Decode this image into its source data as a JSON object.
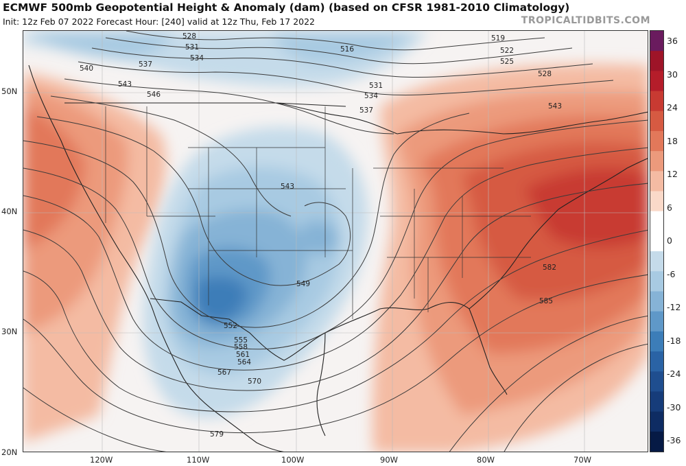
{
  "header": {
    "title": "ECMWF 500mb Geopotential Height & Anomaly (dam) (based on CFSR 1981-2010 Climatology)",
    "subtitle": "Init: 12z Feb 07 2022   Forecast Hour: [240]   valid at 12z Thu, Feb 17 2022",
    "brand": "TROPICALTIDBITS.COM"
  },
  "axes": {
    "lat_labels": [
      "50N",
      "40N",
      "30N",
      "20N"
    ],
    "lon_labels": [
      "120W",
      "110W",
      "100W",
      "90W",
      "80W",
      "70W"
    ]
  },
  "colorbar": {
    "tick_labels": [
      "36",
      "30",
      "24",
      "18",
      "12",
      "6",
      "0",
      "-6",
      "-12",
      "-18",
      "-24",
      "-30",
      "-36"
    ],
    "colors": [
      "#6a1b5e",
      "#9e1428",
      "#b51d2a",
      "#c83a32",
      "#d65a42",
      "#e2785a",
      "#ec9a7c",
      "#f4bba3",
      "#fad9c9",
      "#ffffff",
      "#ffffff",
      "#c5dbea",
      "#a8cae2",
      "#86b3d6",
      "#5f98c8",
      "#3c7db8",
      "#2a63a5",
      "#1f4e8f",
      "#163c7a",
      "#0e2c63",
      "#061a45"
    ]
  },
  "contour_labels": {
    "north": [
      "528",
      "531",
      "534",
      "537",
      "540",
      "543",
      "546",
      "516",
      "519",
      "522",
      "525",
      "528",
      "531",
      "534",
      "537",
      "543"
    ],
    "west": [
      "543",
      "549",
      "552",
      "555",
      "558",
      "561",
      "564",
      "567",
      "570",
      "579"
    ],
    "east": [
      "582",
      "585"
    ]
  },
  "colors": {
    "cold_anomaly": "#3c7db8",
    "warm_anomaly": "#d65a42",
    "contour": "#333333",
    "border": "#222222"
  }
}
